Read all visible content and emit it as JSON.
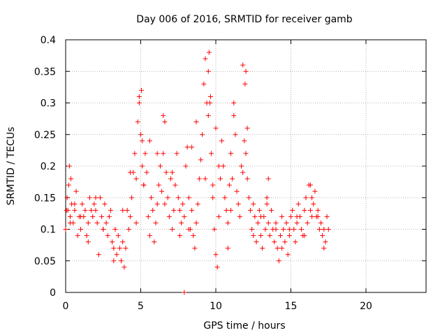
{
  "chart_data": {
    "type": "scatter",
    "title": "Day 006 of 2016, SRMTID for receiver gamb",
    "xlabel": "GPS time / hours",
    "ylabel": "SRMTID / TECUs",
    "xlim": [
      0,
      24
    ],
    "ylim": [
      0,
      0.4
    ],
    "x_ticks": [
      0,
      5,
      10,
      15,
      20
    ],
    "y_ticks": [
      0,
      0.05,
      0.1,
      0.15,
      0.2,
      0.25,
      0.3,
      0.35,
      0.4
    ],
    "y_tick_labels": [
      "0",
      "0.05",
      "0.1",
      "0.15",
      "0.2",
      "0.25",
      "0.3",
      "0.35",
      "0.4"
    ],
    "grid": true,
    "marker": "plus",
    "color": "#ff0000",
    "series": [
      {
        "name": "SRMTID",
        "x": [
          0.0,
          0.1,
          0.15,
          0.2,
          0.25,
          0.3,
          0.35,
          0.4,
          0.5,
          0.6,
          0.7,
          0.8,
          0.9,
          1.0,
          1.1,
          1.2,
          1.3,
          1.4,
          1.5,
          1.6,
          1.7,
          1.8,
          1.9,
          2.0,
          2.1,
          2.2,
          2.3,
          2.4,
          2.5,
          2.6,
          2.7,
          2.8,
          2.9,
          3.0,
          3.1,
          3.2,
          3.3,
          3.4,
          3.5,
          3.6,
          3.7,
          3.8,
          3.9,
          4.0,
          4.1,
          4.2,
          4.3,
          4.4,
          4.5,
          4.6,
          4.7,
          4.8,
          4.9,
          5.0,
          5.05,
          5.1,
          5.2,
          5.3,
          5.4,
          5.5,
          5.6,
          5.7,
          5.8,
          5.9,
          6.0,
          6.1,
          6.2,
          6.3,
          6.4,
          6.5,
          6.6,
          6.7,
          6.8,
          6.9,
          7.0,
          7.1,
          7.2,
          7.3,
          7.4,
          7.5,
          7.6,
          7.7,
          7.8,
          7.9,
          8.0,
          8.1,
          8.2,
          8.3,
          8.4,
          8.5,
          8.6,
          8.7,
          8.8,
          8.9,
          9.0,
          9.1,
          9.2,
          9.3,
          9.4,
          9.5,
          9.6,
          9.7,
          9.8,
          9.9,
          10.0,
          10.1,
          10.2,
          10.3,
          10.4,
          10.5,
          10.6,
          10.7,
          10.8,
          10.9,
          11.0,
          11.1,
          11.2,
          11.3,
          11.4,
          11.5,
          11.6,
          11.7,
          11.8,
          11.9,
          12.0,
          12.1,
          12.2,
          12.3,
          12.4,
          12.5,
          12.6,
          12.7,
          12.8,
          12.9,
          13.0,
          13.1,
          13.2,
          13.3,
          13.4,
          13.5,
          13.6,
          13.7,
          13.8,
          13.9,
          14.0,
          14.1,
          14.2,
          14.3,
          14.4,
          14.5,
          14.6,
          14.7,
          14.8,
          14.9,
          15.0,
          15.1,
          15.2,
          15.3,
          15.4,
          15.5,
          15.6,
          15.7,
          15.8,
          15.9,
          16.0,
          16.1,
          16.2,
          16.3,
          16.4,
          16.5,
          16.6,
          16.7,
          16.8,
          16.9,
          17.0,
          17.1,
          17.2,
          17.3,
          17.4,
          17.5,
          0.05,
          0.3,
          0.6,
          1.0,
          1.5,
          2.0,
          2.5,
          3.2,
          3.8,
          4.3,
          4.7,
          5.2,
          5.6,
          6.1,
          6.6,
          7.1,
          7.6,
          8.2,
          8.7,
          9.3,
          9.55,
          9.65,
          9.8,
          10.2,
          10.8,
          11.2,
          11.8,
          11.95,
          12.1,
          12.5,
          13.0,
          13.4,
          14.0,
          14.4,
          14.9,
          15.4,
          15.9,
          16.4,
          16.8,
          17.2,
          4.9,
          5.1,
          6.5,
          8.4,
          9.5,
          10.0,
          11.0,
          12.0,
          13.5,
          16.3,
          7.9
        ],
        "y": [
          0.1,
          0.15,
          0.13,
          0.17,
          0.2,
          0.12,
          0.18,
          0.14,
          0.11,
          0.13,
          0.16,
          0.09,
          0.12,
          0.1,
          0.14,
          0.12,
          0.13,
          0.09,
          0.11,
          0.15,
          0.13,
          0.12,
          0.14,
          0.13,
          0.11,
          0.06,
          0.15,
          0.12,
          0.1,
          0.14,
          0.11,
          0.09,
          0.12,
          0.13,
          0.08,
          0.07,
          0.1,
          0.06,
          0.09,
          0.07,
          0.05,
          0.08,
          0.04,
          0.07,
          0.13,
          0.1,
          0.12,
          0.15,
          0.19,
          0.22,
          0.18,
          0.27,
          0.3,
          0.25,
          0.32,
          0.2,
          0.17,
          0.22,
          0.19,
          0.12,
          0.24,
          0.15,
          0.13,
          0.08,
          0.11,
          0.14,
          0.17,
          0.2,
          0.16,
          0.22,
          0.27,
          0.19,
          0.15,
          0.12,
          0.18,
          0.1,
          0.13,
          0.17,
          0.22,
          0.15,
          0.09,
          0.11,
          0.14,
          0.12,
          0.2,
          0.23,
          0.15,
          0.1,
          0.13,
          0.09,
          0.07,
          0.11,
          0.14,
          0.18,
          0.21,
          0.25,
          0.33,
          0.37,
          0.3,
          0.28,
          0.3,
          0.22,
          0.15,
          0.1,
          0.06,
          0.04,
          0.12,
          0.18,
          0.24,
          0.2,
          0.15,
          0.13,
          0.11,
          0.17,
          0.22,
          0.18,
          0.3,
          0.25,
          0.16,
          0.14,
          0.12,
          0.2,
          0.19,
          0.24,
          0.22,
          0.18,
          0.15,
          0.13,
          0.1,
          0.14,
          0.12,
          0.08,
          0.11,
          0.13,
          0.09,
          0.07,
          0.12,
          0.1,
          0.14,
          0.11,
          0.09,
          0.13,
          0.1,
          0.08,
          0.11,
          0.07,
          0.05,
          0.09,
          0.12,
          0.1,
          0.08,
          0.11,
          0.06,
          0.09,
          0.12,
          0.13,
          0.1,
          0.08,
          0.11,
          0.14,
          0.12,
          0.1,
          0.09,
          0.13,
          0.15,
          0.11,
          0.17,
          0.13,
          0.12,
          0.14,
          0.16,
          0.12,
          0.13,
          0.1,
          0.11,
          0.09,
          0.07,
          0.08,
          0.12,
          0.1,
          0.13,
          0.11,
          0.14,
          0.12,
          0.08,
          0.15,
          0.1,
          0.05,
          0.13,
          0.19,
          0.11,
          0.17,
          0.09,
          0.22,
          0.14,
          0.19,
          0.13,
          0.1,
          0.27,
          0.18,
          0.38,
          0.31,
          0.17,
          0.2,
          0.07,
          0.28,
          0.36,
          0.33,
          0.26,
          0.09,
          0.12,
          0.15,
          0.1,
          0.07,
          0.1,
          0.12,
          0.09,
          0.15,
          0.12,
          0.1,
          0.31,
          0.24,
          0.28,
          0.23,
          0.35,
          0.26,
          0.13,
          0.35,
          0.18,
          0.17,
          0.0
        ]
      }
    ]
  }
}
